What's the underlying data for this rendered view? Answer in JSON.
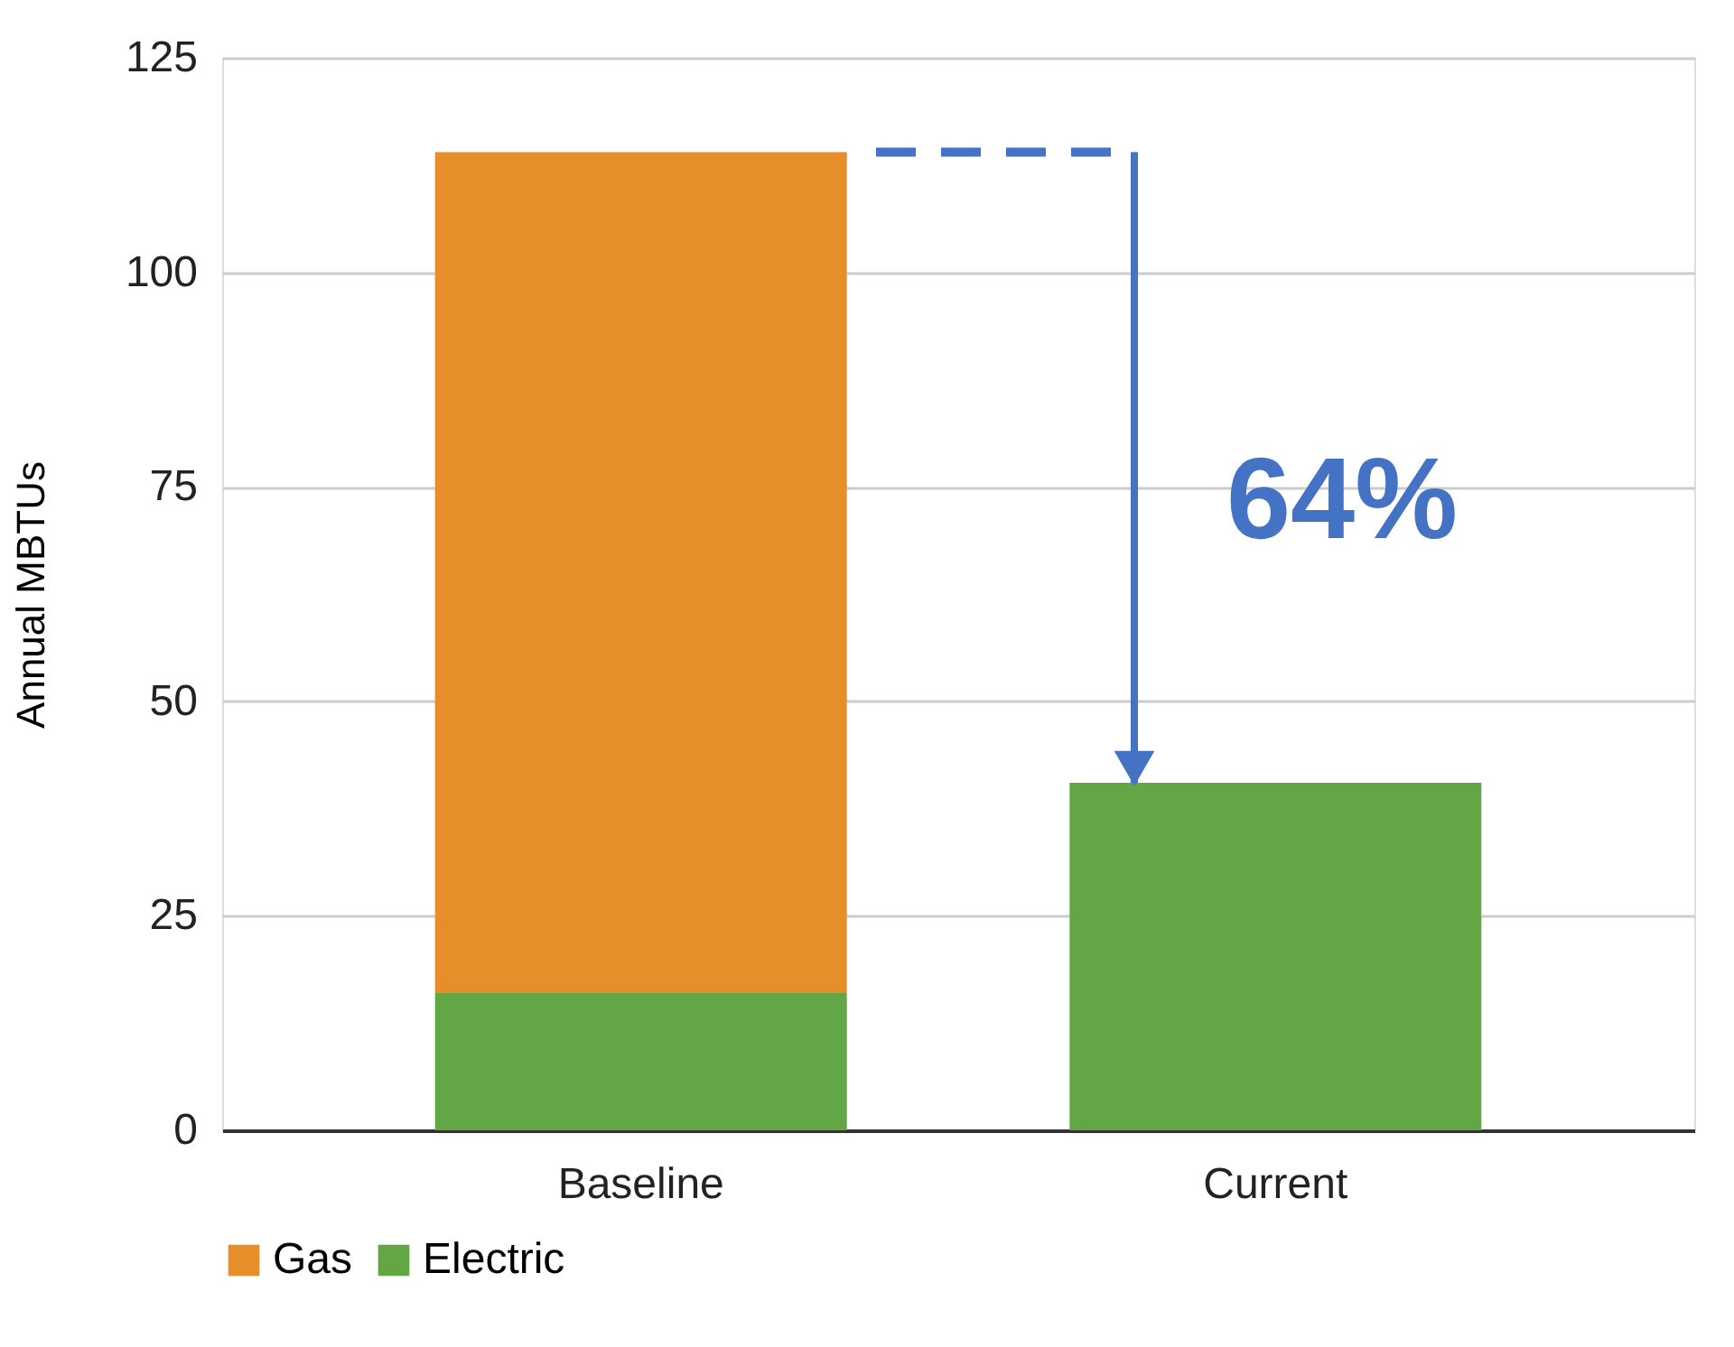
{
  "chart_data": {
    "type": "bar",
    "stacked": true,
    "ylabel": "Annual MBTUs",
    "categories": [
      "Baseline",
      "Current"
    ],
    "series": [
      {
        "name": "Electric",
        "color": "#63a646",
        "values": [
          16,
          40.5
        ]
      },
      {
        "name": "Gas",
        "color": "#e58e2a",
        "values": [
          98,
          null
        ]
      }
    ],
    "ylim": [
      0,
      125
    ],
    "yticks": [
      0,
      25,
      50,
      75,
      100,
      125
    ],
    "grid": "y",
    "legend": "bottom",
    "ref_lines": [
      {
        "axis": "y",
        "value": 114,
        "color": "#4472c4",
        "line_style": "dashed"
      }
    ],
    "annotations": [
      "64%"
    ]
  }
}
